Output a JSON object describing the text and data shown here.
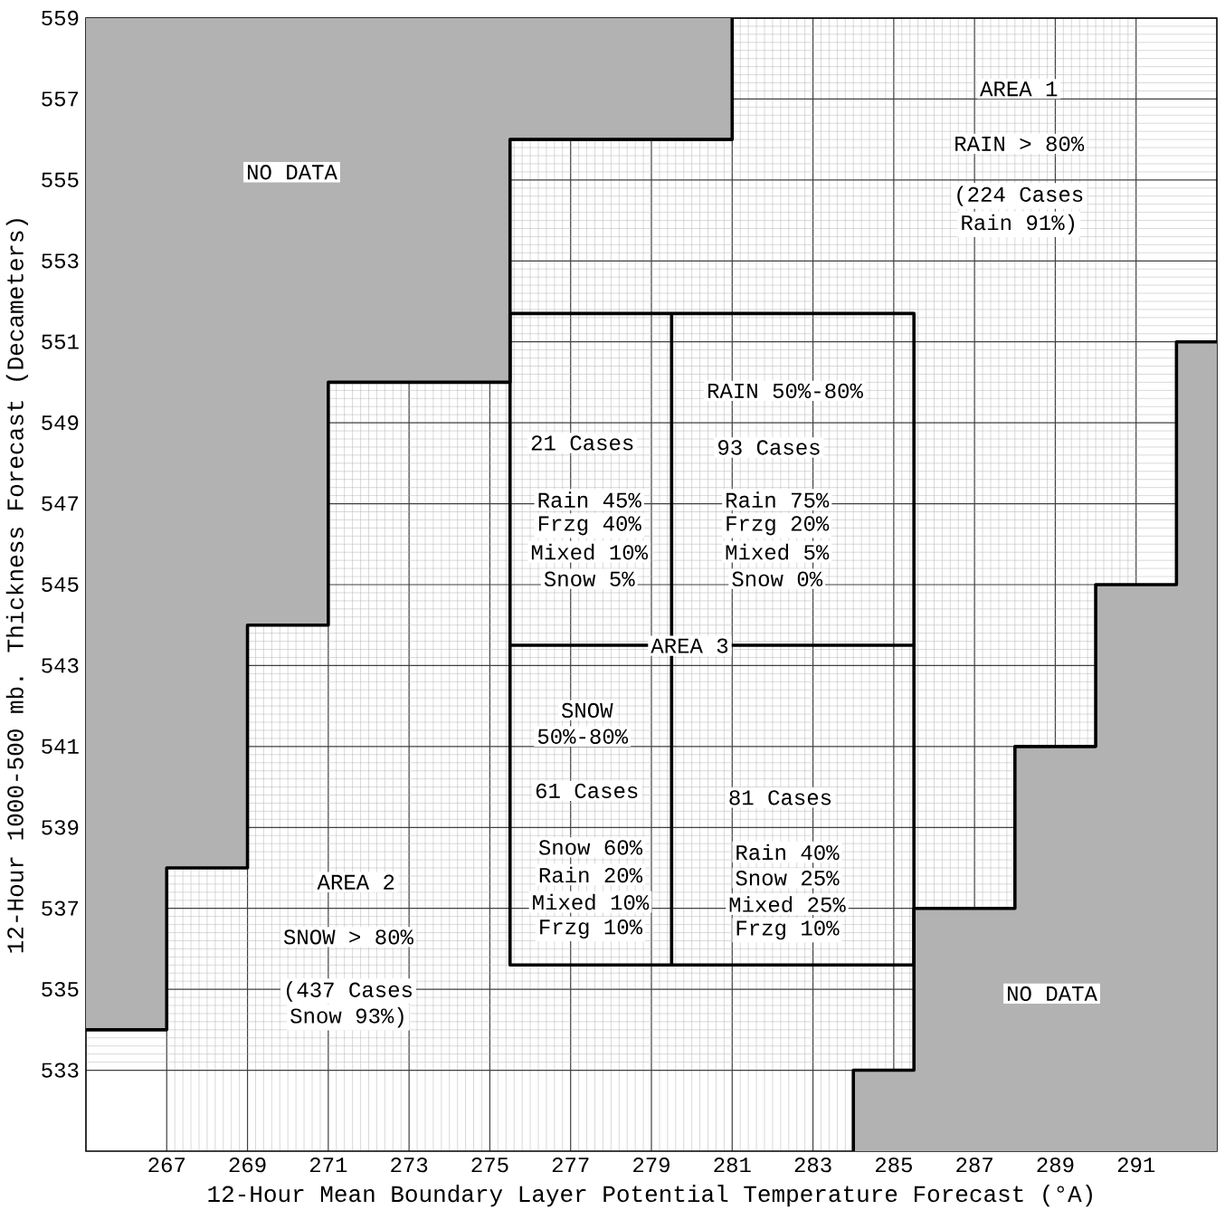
{
  "chart_data": {
    "type": "line",
    "xlabel": "12-Hour Mean Boundary Layer Potential Temperature Forecast (°A)",
    "ylabel": "12-Hour 1000-500 mb. Thickness Forecast (Decameters)",
    "xlim": [
      265,
      293
    ],
    "ylim": [
      531,
      559
    ],
    "xticks": [
      267,
      269,
      271,
      273,
      275,
      277,
      279,
      281,
      283,
      285,
      287,
      289,
      291
    ],
    "yticks": [
      533,
      535,
      537,
      539,
      541,
      543,
      545,
      547,
      549,
      551,
      553,
      555,
      557,
      559
    ],
    "grid": true,
    "series": [
      {
        "color": "#000000",
        "x": [
          265,
          267,
          267,
          269,
          269,
          271,
          271,
          275.5,
          275.5,
          281,
          281
        ],
        "values": [
          534,
          534,
          538,
          538,
          544,
          544,
          550,
          550,
          556,
          556,
          559
        ],
        "lower": [
          534,
          534,
          538,
          538,
          544,
          544,
          550,
          550,
          556,
          556,
          559
        ],
        "upper": [
          559,
          559,
          559,
          559,
          559,
          559,
          559,
          559,
          559,
          559,
          559
        ]
      },
      {
        "color": "#000000",
        "x": [
          284,
          284,
          285.5,
          285.5,
          288,
          288,
          290,
          290,
          292,
          292,
          293
        ],
        "values": [
          531,
          533,
          533,
          537,
          537,
          541,
          541,
          545,
          545,
          551,
          551
        ],
        "lower": [
          531,
          531,
          531,
          531,
          531,
          531,
          531,
          531,
          531,
          531,
          531
        ],
        "upper": [
          531,
          533,
          533,
          537,
          537,
          541,
          541,
          545,
          545,
          551,
          551
        ]
      },
      {
        "color": "#000000",
        "x": [
          275.5,
          285.5,
          285.5
        ],
        "values": [
          551.7,
          551.7,
          535.6
        ]
      },
      {
        "color": "#000000",
        "x": [
          275.5,
          275.5,
          285.5
        ],
        "values": [
          551.7,
          535.6,
          535.6
        ]
      },
      {
        "color": "#000000",
        "x": [
          279.5,
          279.5
        ],
        "values": [
          535.6,
          551.7
        ]
      },
      {
        "color": "#000000",
        "x": [
          275.5,
          285.5
        ],
        "values": [
          543.5,
          543.5
        ]
      }
    ],
    "annotations": [
      "NO DATA",
      "AREA 1",
      "RAIN > 80%",
      "(224 Cases",
      "Rain 91%)",
      "RAIN 50%-80%",
      "21 Cases",
      "Rain 45%",
      "Frzg 40%",
      "Mixed 10%",
      "Snow 5%",
      "93 Cases",
      "Rain 75%",
      "Frzg 20%",
      "Mixed 5%",
      "Snow 0%",
      "AREA 3",
      "SNOW",
      "50%-80%",
      "61 Cases",
      "Snow 60%",
      "Rain 20%",
      "Mixed 10%",
      "Frzg 10%",
      "81 Cases",
      "Rain 40%",
      "Snow 25%",
      "Mixed 25%",
      "Frzg 10%",
      "AREA 2",
      "SNOW > 80%",
      "(437 Cases",
      "Snow 93%)",
      "NO DATA"
    ]
  }
}
